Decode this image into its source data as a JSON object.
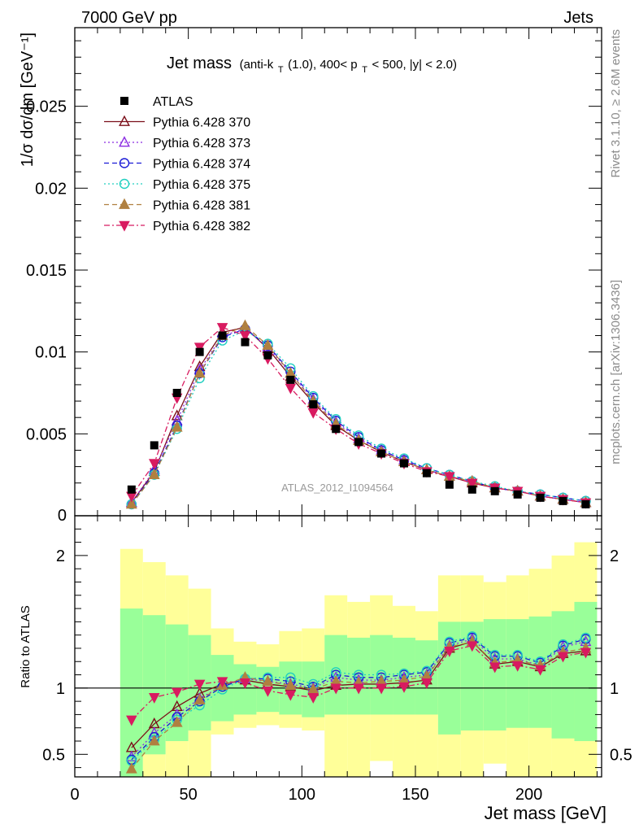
{
  "header": {
    "left": "7000 GeV pp",
    "right": "Jets"
  },
  "side_text": {
    "rivet": "Rivet 3.1.10, ≥ 2.6M events",
    "mcplots": "mcplots.cern.ch [arXiv:1306.3436]"
  },
  "title": {
    "main": "Jet mass",
    "detail_pre": "(anti-k",
    "detail_sub1": "T",
    "detail_mid": "(1.0), 400< p",
    "detail_sub2": "T",
    "detail_post": " < 500, |y| < 2.0)"
  },
  "watermark": "ATLAS_2012_I1094564",
  "xlabel": "Jet mass [GeV]",
  "ylabel_top": "1/σ dσ/dm [GeV⁻¹]",
  "ylabel_bottom": "Ratio to ATLAS",
  "colors": {
    "data": "#000000",
    "p370": "#7b0f1a",
    "p373": "#8a2be2",
    "p374": "#1a1ad6",
    "p375": "#20cfc0",
    "p381": "#b08040",
    "p382": "#d81b60",
    "band_inner": "#99ff99",
    "band_outer": "#ffff99"
  },
  "chart_data": {
    "type": "line",
    "xlim": [
      0,
      232
    ],
    "ylim_main": [
      0,
      0.0298
    ],
    "ylim_ratio": [
      0.33,
      2.3
    ],
    "x_ticks": [
      0,
      50,
      100,
      150,
      200
    ],
    "y_ticks_main": [
      0.005,
      0.01,
      0.015,
      0.02,
      0.025
    ],
    "y_ticks_main_labels": [
      "0.005",
      "0.01",
      "0.015",
      "0.02",
      "0.025"
    ],
    "y_zero_label": "0",
    "y_ticks_ratio": [
      0.5,
      1,
      2
    ],
    "y_ticks_ratio_labels": [
      "0.5",
      "1",
      "2"
    ],
    "x": [
      25,
      35,
      45,
      55,
      65,
      75,
      85,
      95,
      105,
      115,
      125,
      135,
      145,
      155,
      165,
      175,
      185,
      195,
      205,
      215,
      225
    ],
    "bin_edges": [
      20,
      30,
      40,
      50,
      60,
      70,
      80,
      90,
      100,
      110,
      120,
      130,
      140,
      150,
      160,
      170,
      180,
      190,
      200,
      210,
      220,
      230
    ],
    "series": [
      {
        "name": "ATLAS",
        "key": "data",
        "values": [
          0.0016,
          0.0043,
          0.0075,
          0.01,
          0.011,
          0.0106,
          0.0098,
          0.0083,
          0.0068,
          0.0053,
          0.0045,
          0.0038,
          0.0032,
          0.0026,
          0.0019,
          0.0016,
          0.0015,
          0.0013,
          0.0011,
          0.0009,
          0.0007
        ],
        "ratio": [
          1,
          1,
          1,
          1,
          1,
          1,
          1,
          1,
          1,
          1,
          1,
          1,
          1,
          1,
          1,
          1,
          1,
          1,
          1,
          1,
          1
        ]
      },
      {
        "name": "Pythia 6.428 370",
        "key": "p370",
        "values": [
          0.0008,
          0.0027,
          0.0061,
          0.0091,
          0.0112,
          0.0115,
          0.0102,
          0.0085,
          0.0069,
          0.0055,
          0.0046,
          0.0039,
          0.0033,
          0.0028,
          0.0024,
          0.002,
          0.0017,
          0.0015,
          0.0012,
          0.001,
          0.0008
        ],
        "ratio": [
          0.55,
          0.73,
          0.86,
          0.96,
          1.03,
          1.06,
          1.03,
          1.01,
          0.98,
          1.02,
          1.03,
          1.03,
          1.04,
          1.06,
          1.3,
          1.35,
          1.18,
          1.2,
          1.16,
          1.26,
          1.28
        ]
      },
      {
        "name": "Pythia 6.428 373",
        "key": "p373",
        "values": [
          0.0008,
          0.0028,
          0.0058,
          0.0089,
          0.011,
          0.0114,
          0.0103,
          0.0087,
          0.0071,
          0.0057,
          0.0047,
          0.004,
          0.0034,
          0.0028,
          0.0024,
          0.0021,
          0.0017,
          0.0015,
          0.0012,
          0.001,
          0.0008
        ],
        "ratio": [
          0.48,
          0.66,
          0.8,
          0.92,
          1.02,
          1.07,
          1.05,
          1.03,
          1.0,
          1.08,
          1.06,
          1.06,
          1.08,
          1.1,
          1.32,
          1.37,
          1.22,
          1.22,
          1.17,
          1.31,
          1.35
        ]
      },
      {
        "name": "Pythia 6.428 374",
        "key": "p374",
        "values": [
          0.0007,
          0.0026,
          0.0055,
          0.0087,
          0.0109,
          0.0114,
          0.0104,
          0.0088,
          0.0072,
          0.0058,
          0.0048,
          0.004,
          0.0034,
          0.0029,
          0.0025,
          0.0021,
          0.0017,
          0.0015,
          0.0013,
          0.0011,
          0.0009
        ],
        "ratio": [
          0.46,
          0.63,
          0.78,
          0.9,
          1.01,
          1.07,
          1.07,
          1.05,
          1.01,
          1.1,
          1.08,
          1.08,
          1.1,
          1.12,
          1.34,
          1.38,
          1.24,
          1.24,
          1.19,
          1.32,
          1.37
        ]
      },
      {
        "name": "Pythia 6.428 375",
        "key": "p375",
        "values": [
          0.0007,
          0.0025,
          0.0053,
          0.0084,
          0.0107,
          0.0113,
          0.0105,
          0.009,
          0.0073,
          0.0059,
          0.0049,
          0.0041,
          0.0035,
          0.0029,
          0.0025,
          0.0021,
          0.0018,
          0.0015,
          0.0013,
          0.0011,
          0.0009
        ],
        "ratio": [
          0.45,
          0.61,
          0.76,
          0.87,
          0.99,
          1.07,
          1.08,
          1.08,
          1.03,
          1.12,
          1.1,
          1.1,
          1.11,
          1.13,
          1.35,
          1.39,
          1.25,
          1.25,
          1.2,
          1.33,
          1.38
        ]
      },
      {
        "name": "Pythia 6.428 381",
        "key": "p381",
        "values": [
          0.0007,
          0.0025,
          0.0054,
          0.0087,
          0.011,
          0.0116,
          0.0104,
          0.0087,
          0.007,
          0.0056,
          0.0046,
          0.0039,
          0.0033,
          0.0028,
          0.0024,
          0.0021,
          0.0017,
          0.0015,
          0.0012,
          0.001,
          0.0008
        ],
        "ratio": [
          0.39,
          0.6,
          0.74,
          0.91,
          1.02,
          1.08,
          1.05,
          1.02,
          0.99,
          1.05,
          1.04,
          1.05,
          1.06,
          1.09,
          1.31,
          1.35,
          1.19,
          1.21,
          1.17,
          1.27,
          1.3
        ]
      },
      {
        "name": "Pythia 6.428 382",
        "key": "p382",
        "values": [
          0.0012,
          0.0032,
          0.0072,
          0.0103,
          0.0115,
          0.011,
          0.0096,
          0.0078,
          0.0063,
          0.0053,
          0.0044,
          0.0038,
          0.0032,
          0.0027,
          0.0024,
          0.002,
          0.0017,
          0.0015,
          0.0012,
          0.001,
          0.0008
        ],
        "ratio": [
          0.76,
          0.93,
          0.97,
          1.03,
          1.05,
          1.04,
          0.98,
          0.95,
          0.93,
          1.0,
          1.0,
          1.0,
          1.01,
          1.04,
          1.28,
          1.32,
          1.16,
          1.17,
          1.14,
          1.24,
          1.27
        ]
      }
    ],
    "band_inner": {
      "lo": [
        0.2,
        0.5,
        0.6,
        0.68,
        0.75,
        0.8,
        0.82,
        0.8,
        0.78,
        0.8,
        0.8,
        0.8,
        0.8,
        0.8,
        0.65,
        0.68,
        0.68,
        0.7,
        0.7,
        0.62,
        0.6
      ],
      "hi": [
        1.6,
        1.55,
        1.48,
        1.4,
        1.25,
        1.18,
        1.16,
        1.2,
        1.2,
        1.4,
        1.38,
        1.4,
        1.38,
        1.36,
        1.5,
        1.5,
        1.52,
        1.52,
        1.54,
        1.58,
        1.65
      ]
    },
    "band_outer": {
      "lo": [
        0.33,
        0.33,
        0.33,
        0.33,
        0.65,
        0.7,
        0.72,
        0.7,
        0.68,
        0.33,
        0.33,
        0.45,
        0.33,
        0.33,
        0.33,
        0.33,
        0.43,
        0.33,
        0.33,
        0.33,
        0.33
      ],
      "hi": [
        2.05,
        1.95,
        1.85,
        1.75,
        1.45,
        1.35,
        1.33,
        1.43,
        1.45,
        1.7,
        1.65,
        1.7,
        1.62,
        1.58,
        1.85,
        1.85,
        1.8,
        1.85,
        1.9,
        2.0,
        2.1
      ]
    },
    "legend": {
      "placement": "top-left"
    },
    "grid": false
  }
}
